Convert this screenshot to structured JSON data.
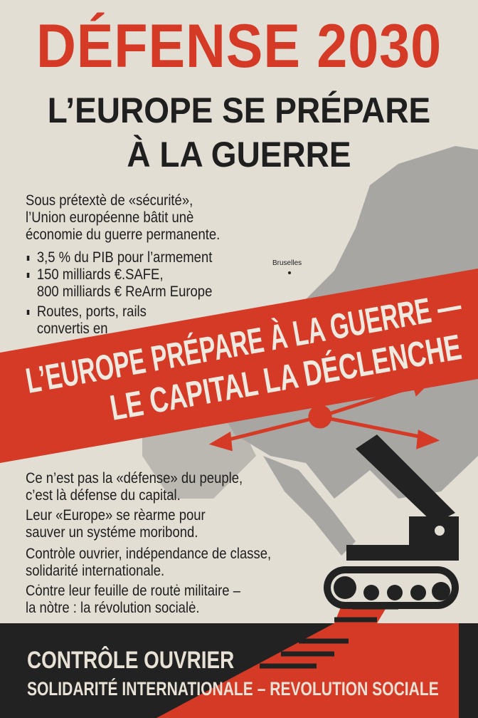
{
  "title": "DÉFENSE 2030",
  "subtitle_lines": [
    "L’EUROPE SE PRÉPARE",
    "À LA GUERRE"
  ],
  "intro_lines": [
    "Sous prétextè de «sécurité»,",
    "l’Union européenne bâtit unè",
    "économie du guerre permanente."
  ],
  "bullets": [
    [
      "3,5 % du PIB pour l’armement"
    ],
    [
      "150 milliards €.SAFE,",
      "800 milliards € ReArm Europe"
    ],
    [
      "Routes, ports, rails",
      "convertis en"
    ]
  ],
  "map_label": "Bruselles",
  "banner_lines": [
    "L’EUROPE PRÉPARE À LA GUERRE —",
    "LE CAPITAL LA DÉCLENCHE"
  ],
  "paragraphs": [
    [
      "Ce n’est pas la «défense» du peuple,",
      "c’est là défense du capital."
    ],
    [
      "Leur «Europe» se rèarme pour",
      "sauver un systéme moribond."
    ],
    [
      "Contròle ouvrier, indépendance de classe,",
      "solidarité internationale."
    ],
    [
      "Cȯntre leur feuille de routė militaire –",
      "la nòtre : la révolution socialė."
    ]
  ],
  "footer": {
    "line1": "CONTRÔLE OUVRIER",
    "line2": "SOLIDARITÉ INTERNATIONALE – REVOLUTION SOCIALE"
  },
  "colors": {
    "red": "#d43a26",
    "black": "#222222",
    "paper": "#e3ded4",
    "map": "#9a9a98"
  }
}
